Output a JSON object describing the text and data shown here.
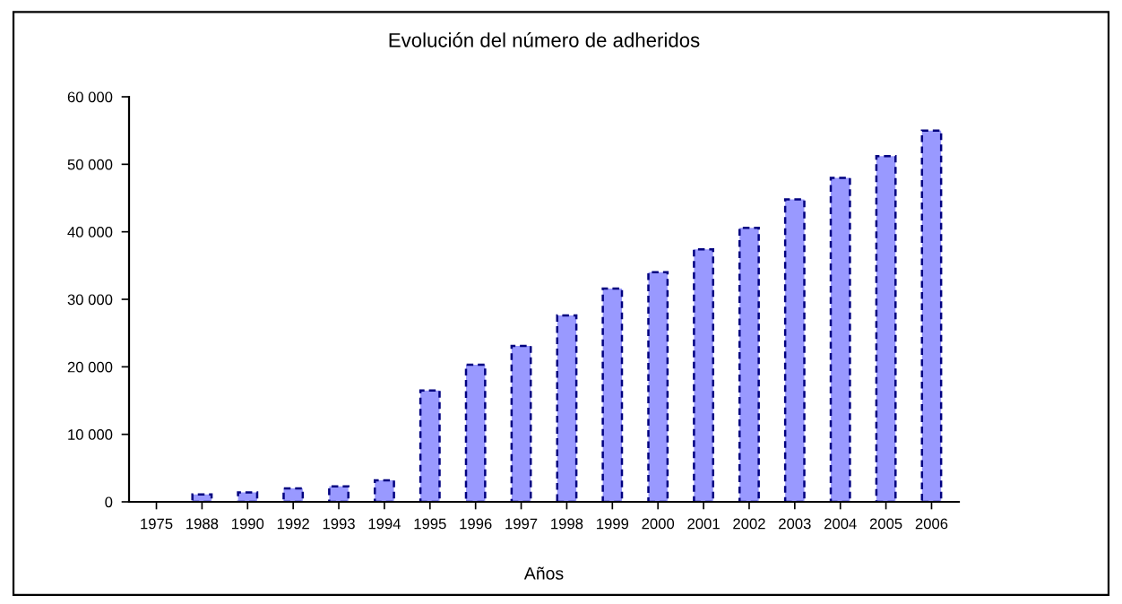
{
  "chart_data": {
    "type": "bar",
    "title": "Evolución del número de adheridos",
    "xlabel": "Años",
    "categories": [
      "1975",
      "1988",
      "1990",
      "1992",
      "1993",
      "1994",
      "1995",
      "1996",
      "1997",
      "1998",
      "1999",
      "2000",
      "2001",
      "2002",
      "2003",
      "2004",
      "2005",
      "2006"
    ],
    "values": [
      null,
      1100,
      1400,
      2000,
      2300,
      3200,
      16500,
      20300,
      23100,
      27600,
      31600,
      34000,
      37400,
      40600,
      44800,
      48000,
      51200,
      55000
    ],
    "color": "#9999ff",
    "line_style": "dashed",
    "ylim": [
      0,
      60000
    ],
    "yticks": [
      {
        "value": 0,
        "label": "0"
      },
      {
        "value": 10000,
        "label": "10 000"
      },
      {
        "value": 20000,
        "label": "20 000"
      },
      {
        "value": 30000,
        "label": "30 000"
      },
      {
        "value": 40000,
        "label": "40 000"
      },
      {
        "value": 50000,
        "label": "50 000"
      },
      {
        "value": 60000,
        "label": "60 000"
      }
    ],
    "grid": false
  }
}
